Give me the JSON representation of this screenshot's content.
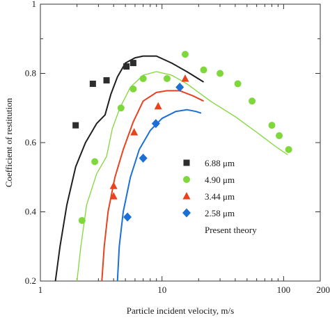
{
  "chart_data": {
    "type": "scatter",
    "x_scale": "log",
    "xlim": [
      1,
      200
    ],
    "ylim": [
      0.2,
      1.0
    ],
    "xlabel": "Particle incident velocity, m/s",
    "ylabel": "Coefficient of restitution",
    "x_ticks": [
      {
        "value": 1,
        "label": "1"
      },
      {
        "value": 10,
        "label": "10"
      },
      {
        "value": 100,
        "label": "100"
      },
      {
        "value": 200,
        "label": "200"
      }
    ],
    "y_ticks": [
      {
        "value": 0.2,
        "label": "0.2"
      },
      {
        "value": 0.4,
        "label": "0.4"
      },
      {
        "value": 0.6,
        "label": "0.6"
      },
      {
        "value": 0.8,
        "label": "0.8"
      },
      {
        "value": 1.0,
        "label": "1"
      }
    ],
    "y_minor_ticks": [
      0.9
    ],
    "legend_position": "center-right",
    "series": [
      {
        "name": "6.88 μm",
        "marker": "square",
        "color": "#2d2d2d",
        "points": [
          {
            "x": 1.95,
            "y": 0.65
          },
          {
            "x": 2.7,
            "y": 0.77
          },
          {
            "x": 3.5,
            "y": 0.78
          },
          {
            "x": 5.1,
            "y": 0.82
          },
          {
            "x": 5.8,
            "y": 0.83
          }
        ]
      },
      {
        "name": "4.90 μm",
        "marker": "circle",
        "color": "#7fd83b",
        "points": [
          {
            "x": 2.2,
            "y": 0.375
          },
          {
            "x": 2.8,
            "y": 0.545
          },
          {
            "x": 4.6,
            "y": 0.7
          },
          {
            "x": 5.8,
            "y": 0.755
          },
          {
            "x": 7.0,
            "y": 0.785
          },
          {
            "x": 11.0,
            "y": 0.785
          },
          {
            "x": 15.5,
            "y": 0.855
          },
          {
            "x": 22.0,
            "y": 0.81
          },
          {
            "x": 30.0,
            "y": 0.8
          },
          {
            "x": 42.0,
            "y": 0.77
          },
          {
            "x": 55.0,
            "y": 0.72
          },
          {
            "x": 80.0,
            "y": 0.65
          },
          {
            "x": 92.0,
            "y": 0.62
          },
          {
            "x": 110.0,
            "y": 0.58
          }
        ]
      },
      {
        "name": "3.44 μm",
        "marker": "triangle",
        "color": "#e8421e",
        "points": [
          {
            "x": 4.0,
            "y": 0.475
          },
          {
            "x": 4.0,
            "y": 0.445
          },
          {
            "x": 5.9,
            "y": 0.63
          },
          {
            "x": 9.3,
            "y": 0.705
          },
          {
            "x": 15.5,
            "y": 0.785
          }
        ]
      },
      {
        "name": "2.58 μm",
        "marker": "diamond",
        "color": "#1c6fd6",
        "points": [
          {
            "x": 5.2,
            "y": 0.385
          },
          {
            "x": 7.0,
            "y": 0.555
          },
          {
            "x": 8.9,
            "y": 0.655
          },
          {
            "x": 14.0,
            "y": 0.76
          }
        ]
      }
    ],
    "theory_label": "Present theory",
    "theory_curves": [
      {
        "color": "#1f1f1f",
        "points": [
          {
            "x": 1.33,
            "y": 0.2
          },
          {
            "x": 1.45,
            "y": 0.3
          },
          {
            "x": 1.65,
            "y": 0.42
          },
          {
            "x": 1.95,
            "y": 0.53
          },
          {
            "x": 2.35,
            "y": 0.6
          },
          {
            "x": 2.9,
            "y": 0.655
          },
          {
            "x": 3.4,
            "y": 0.68
          },
          {
            "x": 3.8,
            "y": 0.74
          },
          {
            "x": 4.3,
            "y": 0.79
          },
          {
            "x": 5.0,
            "y": 0.83
          },
          {
            "x": 6.0,
            "y": 0.845
          },
          {
            "x": 7.0,
            "y": 0.85
          },
          {
            "x": 9.0,
            "y": 0.85
          },
          {
            "x": 12.0,
            "y": 0.83
          },
          {
            "x": 16.0,
            "y": 0.805
          },
          {
            "x": 22.0,
            "y": 0.775
          }
        ]
      },
      {
        "color": "#7fd83b",
        "points": [
          {
            "x": 2.0,
            "y": 0.2
          },
          {
            "x": 2.15,
            "y": 0.3
          },
          {
            "x": 2.4,
            "y": 0.42
          },
          {
            "x": 2.9,
            "y": 0.51
          },
          {
            "x": 3.5,
            "y": 0.56
          },
          {
            "x": 3.9,
            "y": 0.64
          },
          {
            "x": 4.5,
            "y": 0.7
          },
          {
            "x": 5.5,
            "y": 0.76
          },
          {
            "x": 7.0,
            "y": 0.795
          },
          {
            "x": 9.0,
            "y": 0.805
          },
          {
            "x": 12.0,
            "y": 0.795
          },
          {
            "x": 16.0,
            "y": 0.77
          },
          {
            "x": 25.0,
            "y": 0.72
          },
          {
            "x": 40.0,
            "y": 0.675
          },
          {
            "x": 60.0,
            "y": 0.63
          },
          {
            "x": 85.0,
            "y": 0.59
          },
          {
            "x": 108.0,
            "y": 0.565
          }
        ]
      },
      {
        "color": "#e8421e",
        "points": [
          {
            "x": 3.2,
            "y": 0.2
          },
          {
            "x": 3.35,
            "y": 0.3
          },
          {
            "x": 3.6,
            "y": 0.4
          },
          {
            "x": 4.1,
            "y": 0.5
          },
          {
            "x": 4.8,
            "y": 0.58
          },
          {
            "x": 5.8,
            "y": 0.66
          },
          {
            "x": 7.0,
            "y": 0.72
          },
          {
            "x": 9.0,
            "y": 0.745
          },
          {
            "x": 11.0,
            "y": 0.75
          },
          {
            "x": 14.0,
            "y": 0.75
          },
          {
            "x": 18.0,
            "y": 0.735
          },
          {
            "x": 22.0,
            "y": 0.72
          }
        ]
      },
      {
        "color": "#1c6fd6",
        "points": [
          {
            "x": 4.3,
            "y": 0.2
          },
          {
            "x": 4.45,
            "y": 0.3
          },
          {
            "x": 4.8,
            "y": 0.4
          },
          {
            "x": 5.5,
            "y": 0.5
          },
          {
            "x": 6.5,
            "y": 0.58
          },
          {
            "x": 8.0,
            "y": 0.635
          },
          {
            "x": 10.0,
            "y": 0.67
          },
          {
            "x": 13.0,
            "y": 0.69
          },
          {
            "x": 16.0,
            "y": 0.695
          },
          {
            "x": 19.0,
            "y": 0.69
          },
          {
            "x": 21.0,
            "y": 0.685
          }
        ]
      }
    ]
  }
}
